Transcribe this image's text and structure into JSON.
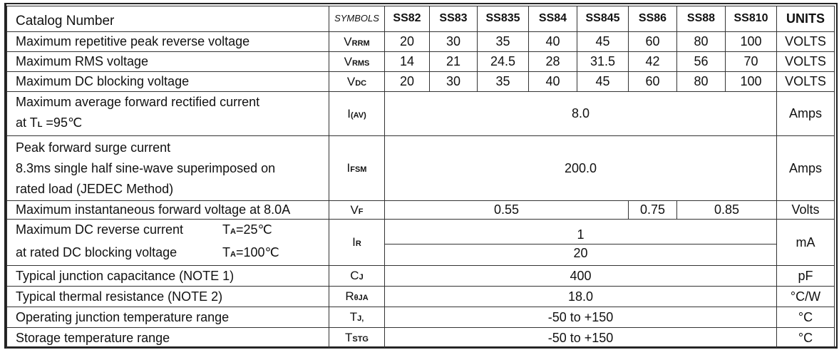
{
  "header": {
    "label": "Catalog Number",
    "symbols": "SYMBOLS",
    "parts": [
      "SS82",
      "SS83",
      "SS835",
      "SS84",
      "SS845",
      "SS86",
      "SS88",
      "SS810"
    ],
    "units": "UNITS"
  },
  "rows": [
    {
      "label": "Maximum repetitive peak reverse voltage",
      "sym": "V",
      "sub": "RRM",
      "values": [
        "20",
        "30",
        "35",
        "40",
        "45",
        "60",
        "80",
        "100"
      ],
      "units": "VOLTS"
    },
    {
      "label": "Maximum RMS voltage",
      "sym": "V",
      "sub": "RMS",
      "values": [
        "14",
        "21",
        "24.5",
        "28",
        "31.5",
        "42",
        "56",
        "70"
      ],
      "units": "VOLTS"
    },
    {
      "label": "Maximum DC blocking voltage",
      "sym": "V",
      "sub": "DC",
      "values": [
        "20",
        "30",
        "35",
        "40",
        "45",
        "60",
        "80",
        "100"
      ],
      "units": "VOLTS"
    }
  ],
  "iav": {
    "line1": "Maximum average forward rectified current",
    "line2a": "at T",
    "line2sub": "L",
    "line2b": " =95℃",
    "sym": "I",
    "sub": "(AV)",
    "value": "8.0",
    "units": "Amps"
  },
  "ifsm": {
    "line1": "Peak forward surge current",
    "line2": "8.3ms single half sine-wave superimposed on",
    "line3": "rated load (JEDEC Method)",
    "sym": "I",
    "sub": "FSM",
    "value": "200.0",
    "units": "Amps"
  },
  "vf": {
    "label": "Maximum instantaneous forward voltage at 8.0A",
    "sym": "V",
    "sub": "F",
    "values": [
      "0.55",
      "0.75",
      "0.85"
    ],
    "units": "Volts"
  },
  "ir": {
    "line1": "Maximum DC reverse current",
    "cond1a": "T",
    "cond1sub": "A",
    "cond1b": "=25℃",
    "line2": "at rated DC blocking voltage",
    "cond2a": "T",
    "cond2sub": "A",
    "cond2b": "=100℃",
    "sym": "I",
    "sub": "R",
    "value1": "1",
    "value2": "20",
    "units": "mA"
  },
  "cj": {
    "label": "Typical junction capacitance (NOTE 1)",
    "sym": "C",
    "sub": "J",
    "value": "400",
    "units": "pF"
  },
  "rth": {
    "label": "Typical thermal resistance (NOTE 2)",
    "sym": "R",
    "sub": "θJA",
    "value": "18.0",
    "units": "°C/W"
  },
  "tj": {
    "label": "Operating junction temperature range",
    "sym": "T",
    "sub": "J,",
    "value": "-50 to +150",
    "units": "°C"
  },
  "tstg": {
    "label": "Storage temperature range",
    "sym": "T",
    "sub": "STG",
    "value": "-50 to +150",
    "units": "°C"
  }
}
